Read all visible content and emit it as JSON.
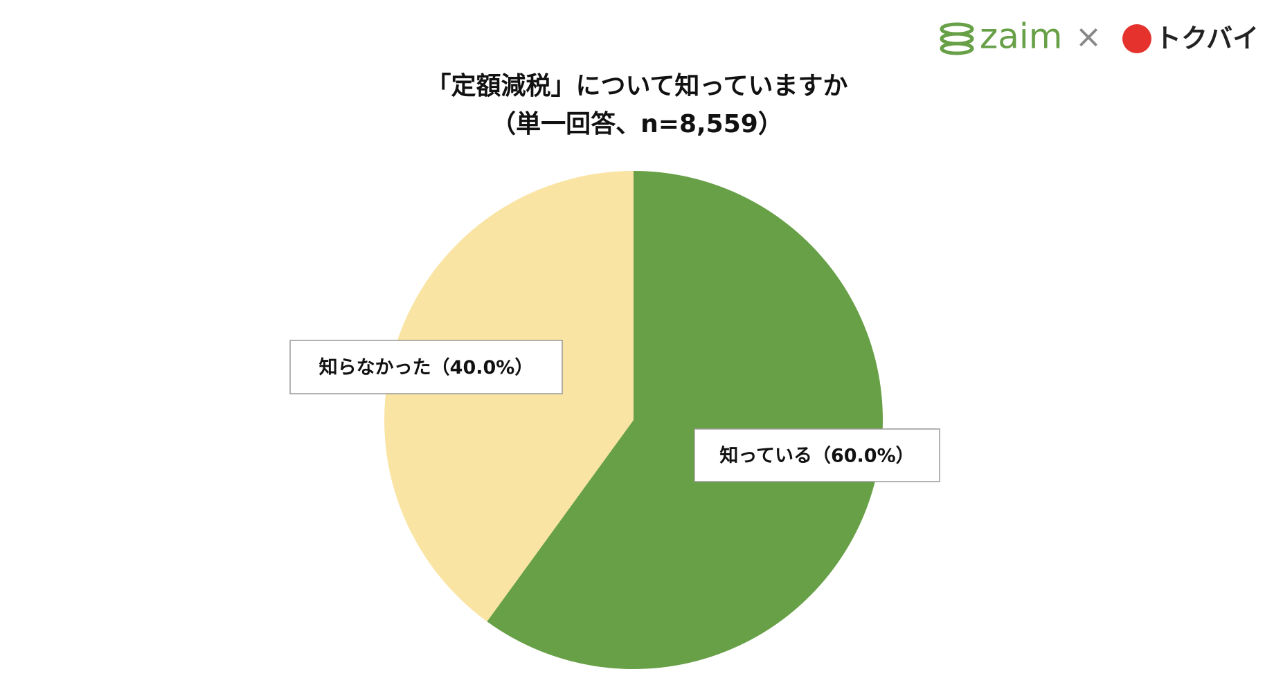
{
  "header": {
    "logos": [
      "zaim",
      "×",
      "トクバイ"
    ]
  },
  "chart_data": {
    "type": "pie",
    "title": [
      "「定額減税」について知っていますか",
      "（単一回答、n=8,559）"
    ],
    "categories": [
      "知っている（60.0%）",
      "知らなかった（40.0%）"
    ],
    "values": [
      60.0,
      40.0
    ],
    "colors": [
      "#67a046",
      "#f9e4a3"
    ]
  }
}
